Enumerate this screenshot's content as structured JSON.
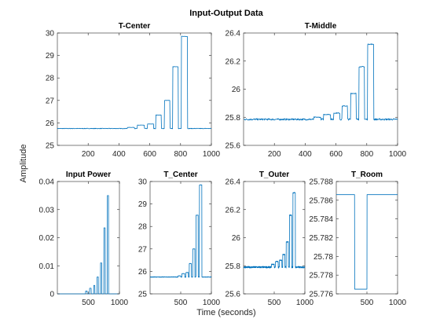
{
  "figure": {
    "title": "Input-Output Data",
    "ylabel": "Amplitude",
    "xlabel": "Time (seconds)",
    "colors": {
      "line": "#0072BD",
      "axis": "#262626",
      "title": "#000000"
    }
  },
  "chart_data": [
    {
      "type": "line",
      "title": "T-Center",
      "xlim": [
        0,
        1000
      ],
      "ylim": [
        25,
        30
      ],
      "xticks": [
        200,
        400,
        600,
        800,
        1000
      ],
      "xtick_labels": [
        "200",
        "400",
        "600",
        "800",
        "1000"
      ],
      "yticks": [
        25,
        26,
        27,
        28,
        29,
        30
      ],
      "ytick_labels": [
        "25",
        "26",
        "27",
        "28",
        "29",
        "30"
      ],
      "signal": {
        "baseline": 25.75,
        "noise": 0.012,
        "pulses": [
          {
            "start": 455,
            "end": 500,
            "value": 25.8
          },
          {
            "start": 520,
            "end": 565,
            "value": 25.9
          },
          {
            "start": 585,
            "end": 625,
            "value": 25.95
          },
          {
            "start": 640,
            "end": 675,
            "value": 26.35
          },
          {
            "start": 695,
            "end": 730,
            "value": 27.0
          },
          {
            "start": 750,
            "end": 785,
            "value": 28.5
          },
          {
            "start": 805,
            "end": 845,
            "value": 29.85
          }
        ]
      }
    },
    {
      "type": "line",
      "title": "T-Middle",
      "xlim": [
        0,
        1000
      ],
      "ylim": [
        25.6,
        26.4
      ],
      "xticks": [
        200,
        400,
        600,
        800,
        1000
      ],
      "xtick_labels": [
        "200",
        "400",
        "600",
        "800",
        "1000"
      ],
      "yticks": [
        25.6,
        25.8,
        26,
        26.2,
        26.4
      ],
      "ytick_labels": [
        "25.6",
        "25.8",
        "26",
        "26.2",
        "26.4"
      ],
      "signal": {
        "baseline": 25.785,
        "noise": 0.006,
        "pulses": [
          {
            "start": 455,
            "end": 500,
            "value": 25.8
          },
          {
            "start": 520,
            "end": 565,
            "value": 25.82
          },
          {
            "start": 585,
            "end": 625,
            "value": 25.83
          },
          {
            "start": 640,
            "end": 675,
            "value": 25.88
          },
          {
            "start": 695,
            "end": 730,
            "value": 25.97
          },
          {
            "start": 750,
            "end": 785,
            "value": 26.16
          },
          {
            "start": 805,
            "end": 845,
            "value": 26.32
          }
        ]
      }
    },
    {
      "type": "line",
      "title": "Input Power",
      "xlim": [
        0,
        1000
      ],
      "ylim": [
        0,
        0.04
      ],
      "xticks": [
        500,
        1000
      ],
      "xtick_labels": [
        "500",
        "1000"
      ],
      "yticks": [
        0,
        0.01,
        0.02,
        0.03,
        0.04
      ],
      "ytick_labels": [
        "0",
        "0.01",
        "0.02",
        "0.03",
        "0.04"
      ],
      "signal": {
        "baseline": 0,
        "noise": 0,
        "pulses": [
          {
            "start": 455,
            "end": 480,
            "value": 0.001
          },
          {
            "start": 520,
            "end": 545,
            "value": 0.002
          },
          {
            "start": 585,
            "end": 605,
            "value": 0.003
          },
          {
            "start": 640,
            "end": 660,
            "value": 0.006
          },
          {
            "start": 695,
            "end": 715,
            "value": 0.011
          },
          {
            "start": 750,
            "end": 770,
            "value": 0.0235
          },
          {
            "start": 805,
            "end": 825,
            "value": 0.035
          }
        ]
      }
    },
    {
      "type": "line",
      "title": "T_Center",
      "xlim": [
        0,
        1000
      ],
      "ylim": [
        25,
        30
      ],
      "xticks": [
        500,
        1000
      ],
      "xtick_labels": [
        "500",
        "1000"
      ],
      "yticks": [
        25,
        26,
        27,
        28,
        29,
        30
      ],
      "ytick_labels": [
        "25",
        "26",
        "27",
        "28",
        "29",
        "30"
      ],
      "signal": {
        "baseline": 25.75,
        "noise": 0.012,
        "pulses": [
          {
            "start": 455,
            "end": 500,
            "value": 25.8
          },
          {
            "start": 520,
            "end": 565,
            "value": 25.9
          },
          {
            "start": 585,
            "end": 625,
            "value": 25.95
          },
          {
            "start": 640,
            "end": 675,
            "value": 26.35
          },
          {
            "start": 695,
            "end": 730,
            "value": 27.0
          },
          {
            "start": 750,
            "end": 785,
            "value": 28.5
          },
          {
            "start": 805,
            "end": 845,
            "value": 29.85
          }
        ]
      }
    },
    {
      "type": "line",
      "title": "T_Outer",
      "xlim": [
        0,
        1000
      ],
      "ylim": [
        25.6,
        26.4
      ],
      "xticks": [
        500,
        1000
      ],
      "xtick_labels": [
        "500",
        "1000"
      ],
      "yticks": [
        25.6,
        25.8,
        26,
        26.2,
        26.4
      ],
      "ytick_labels": [
        "25.6",
        "25.8",
        "26",
        "26.2",
        "26.4"
      ],
      "signal": {
        "baseline": 25.79,
        "noise": 0.006,
        "pulses": [
          {
            "start": 455,
            "end": 500,
            "value": 25.81
          },
          {
            "start": 520,
            "end": 565,
            "value": 25.83
          },
          {
            "start": 585,
            "end": 625,
            "value": 25.84
          },
          {
            "start": 640,
            "end": 675,
            "value": 25.88
          },
          {
            "start": 695,
            "end": 730,
            "value": 25.97
          },
          {
            "start": 750,
            "end": 785,
            "value": 26.16
          },
          {
            "start": 805,
            "end": 845,
            "value": 26.32
          }
        ]
      }
    },
    {
      "type": "line",
      "title": "T_Room",
      "xlim": [
        0,
        1000
      ],
      "ylim": [
        25.776,
        25.788
      ],
      "xticks": [
        500,
        1000
      ],
      "xtick_labels": [
        "500",
        "1000"
      ],
      "yticks": [
        25.776,
        25.778,
        25.78,
        25.782,
        25.784,
        25.786,
        25.788
      ],
      "ytick_labels": [
        "25.776",
        "25.778",
        "25.78",
        "25.782",
        "25.784",
        "25.786",
        "25.788"
      ],
      "signal": {
        "baseline": 25.7866,
        "noise": 0,
        "pulses": [
          {
            "start": 300,
            "end": 500,
            "value": 25.7765
          }
        ]
      }
    }
  ]
}
